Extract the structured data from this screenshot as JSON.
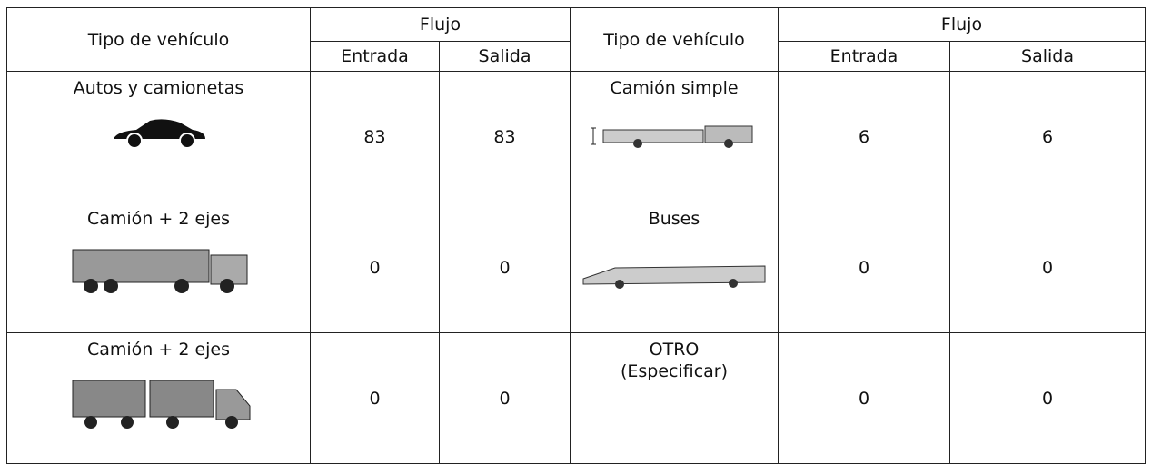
{
  "table": {
    "header": {
      "left_type": "Tipo de vehículo",
      "left_flow": "Flujo",
      "left_in": "Entrada",
      "left_out": "Salida",
      "right_type": "Tipo de vehículo",
      "right_flow": "Flujo",
      "right_in": "Entrada",
      "right_out": "Salida"
    },
    "rows": [
      {
        "left_label": "Autos y camionetas",
        "left_in": 83,
        "left_out": 83,
        "right_label": "Camión simple",
        "right_in": 6,
        "right_out": 6
      },
      {
        "left_label": "Camión + 2 ejes",
        "left_in": 0,
        "left_out": 0,
        "right_label": "Buses",
        "right_in": 0,
        "right_out": 0
      },
      {
        "left_label": "Camión + 2 ejes",
        "left_in": 0,
        "left_out": 0,
        "right_label": "OTRO\n(Especificar)",
        "right_in": 0,
        "right_out": 0
      }
    ]
  }
}
